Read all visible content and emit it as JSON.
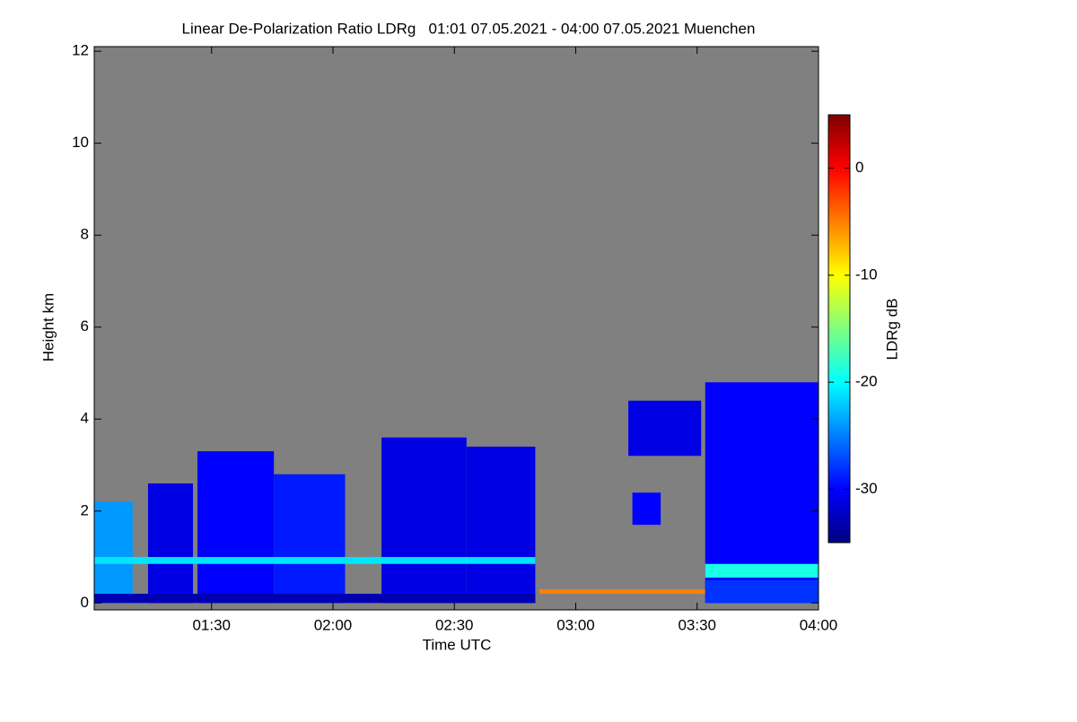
{
  "chart_data": {
    "type": "heatmap",
    "title": "Linear De-Polarization Ratio LDRg   01:01 07.05.2021 - 04:00 07.05.2021 Muenchen",
    "x_label": "Time UTC",
    "y_label": "Height km",
    "colorbar_label": "LDRg dB",
    "xlim": [
      61,
      240
    ],
    "xticks": [
      {
        "value": 90,
        "label": "01:30"
      },
      {
        "value": 120,
        "label": "02:00"
      },
      {
        "value": 150,
        "label": "02:30"
      },
      {
        "value": 180,
        "label": "03:00"
      },
      {
        "value": 210,
        "label": "03:30"
      },
      {
        "value": 240,
        "label": "04:00"
      }
    ],
    "ylim": [
      -0.15,
      12.1
    ],
    "yticks": [
      0,
      2,
      4,
      6,
      8,
      10,
      12
    ],
    "clim": [
      -35,
      5
    ],
    "cticks": [
      0,
      -10,
      -20,
      -30
    ],
    "background_color": "#808080",
    "colormap": [
      "#00007f",
      "#0000ff",
      "#007fff",
      "#00ffff",
      "#7fff7f",
      "#ffff00",
      "#ff7f00",
      "#ff0000",
      "#7f0000"
    ],
    "regions": [
      {
        "x": [
          61,
          70.5
        ],
        "height": [
          0,
          2.2
        ],
        "value": -24
      },
      {
        "x": [
          74.3,
          85.4
        ],
        "height": [
          0,
          2.6
        ],
        "value": -31
      },
      {
        "x": [
          86.5,
          105.4
        ],
        "height": [
          0,
          3.3
        ],
        "value": -30
      },
      {
        "x": [
          105.4,
          123
        ],
        "height": [
          0,
          2.8
        ],
        "value": -29
      },
      {
        "x": [
          132,
          153
        ],
        "height": [
          0,
          3.6
        ],
        "value": -31
      },
      {
        "x": [
          153,
          170
        ],
        "height": [
          0,
          3.4
        ],
        "value": -31
      },
      {
        "x": [
          193,
          211
        ],
        "height": [
          3.2,
          4.4
        ],
        "value": -31
      },
      {
        "x": [
          194,
          201
        ],
        "height": [
          1.7,
          2.4
        ],
        "value": -30
      },
      {
        "x": [
          212,
          240
        ],
        "height": [
          0,
          4.8
        ],
        "value": -30
      },
      {
        "x": [
          61,
          170
        ],
        "height": [
          0.85,
          1.0
        ],
        "value": -21
      },
      {
        "x": [
          61,
          170
        ],
        "height": [
          0,
          0.2
        ],
        "value": -33
      },
      {
        "x": [
          171,
          212
        ],
        "height": [
          0.2,
          0.3
        ],
        "value": -5
      },
      {
        "x": [
          212,
          240
        ],
        "height": [
          0.55,
          0.85
        ],
        "value": -19
      },
      {
        "x": [
          212,
          240
        ],
        "height": [
          0,
          0.5
        ],
        "value": -28
      }
    ]
  }
}
